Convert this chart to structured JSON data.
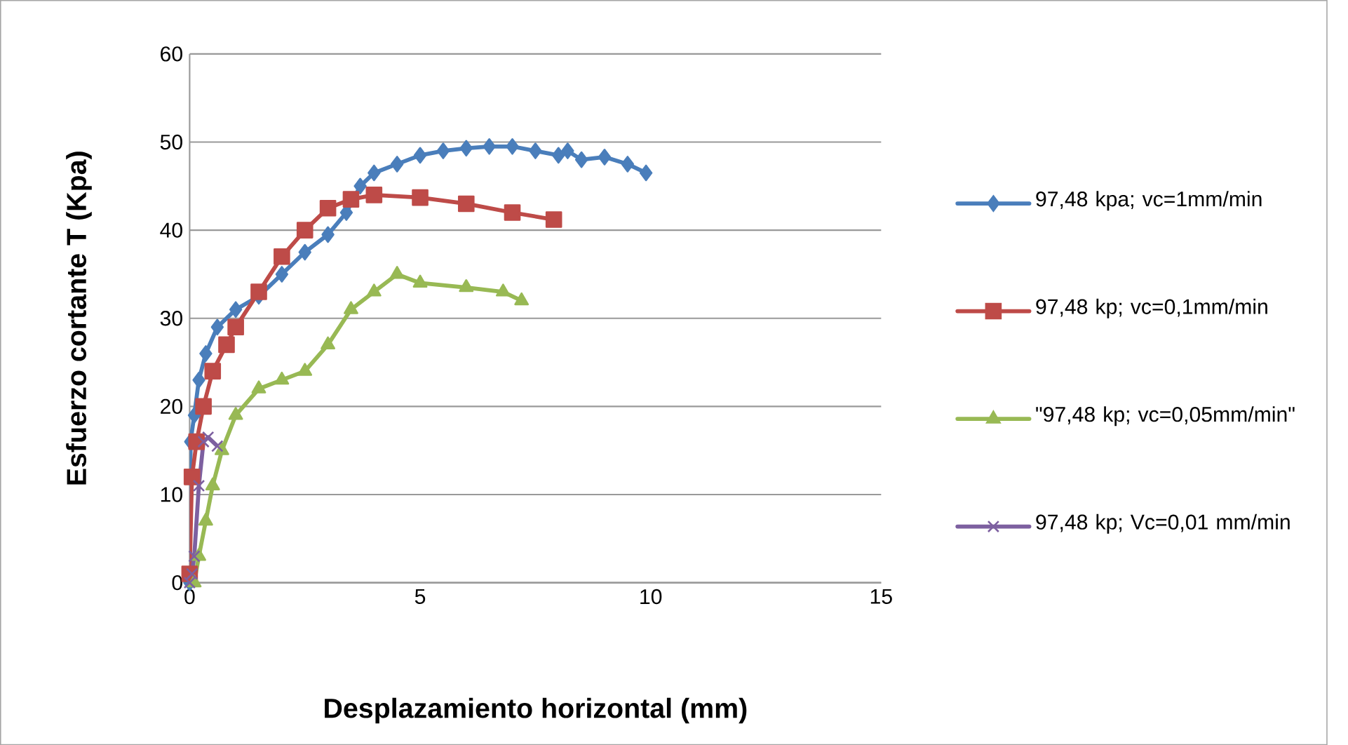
{
  "chart_data": {
    "type": "line",
    "xlabel": "Desplazamiento horizontal (mm)",
    "ylabel": "Esfuerzo cortante Τ (Kpa)",
    "xlim": [
      0,
      15
    ],
    "xticks": [
      0,
      5,
      10,
      15
    ],
    "ylim": [
      0,
      60
    ],
    "yticks": [
      0,
      10,
      20,
      30,
      40,
      50,
      60
    ],
    "grid": "y",
    "legend": "right",
    "line_style": "solid",
    "series": [
      {
        "name": "97,48 kpa; vc=1mm/min",
        "color": "#4a7ebb",
        "marker": "diamond",
        "x": [
          0,
          0.02,
          0.1,
          0.2,
          0.35,
          0.6,
          1,
          1.5,
          2,
          2.5,
          3,
          3.4,
          3.7,
          4,
          4.5,
          5,
          5.5,
          6,
          6.5,
          7,
          7.5,
          8,
          8.2,
          8.5,
          9,
          9.5,
          9.9
        ],
        "values": [
          0,
          16,
          19,
          23,
          26,
          29,
          31,
          32.5,
          35,
          37.5,
          39.5,
          42,
          45,
          46.5,
          47.5,
          48.5,
          49,
          49.3,
          49.5,
          49.5,
          49,
          48.5,
          49,
          48,
          48.3,
          47.5,
          46.5
        ]
      },
      {
        "name": "97,48 kp; vc=0,1mm/min",
        "color": "#be4b48",
        "marker": "square",
        "x": [
          0,
          0.05,
          0.15,
          0.3,
          0.5,
          0.8,
          1,
          1.5,
          2,
          2.5,
          3,
          3.5,
          4,
          5,
          6,
          7,
          7.9
        ],
        "values": [
          1,
          12,
          16,
          20,
          24,
          27,
          29,
          33,
          37,
          40,
          42.5,
          43.5,
          44,
          43.7,
          43,
          42,
          41.2
        ]
      },
      {
        "name": "\"97,48 kp; vc=0,05mm/min\"",
        "color": "#98b954",
        "marker": "triangle",
        "x": [
          0.1,
          0.2,
          0.35,
          0.5,
          0.7,
          1,
          1.5,
          2,
          2.5,
          3,
          3.5,
          4,
          4.5,
          5,
          6,
          6.8,
          7.2
        ],
        "values": [
          0,
          3,
          7,
          11,
          15,
          19,
          22,
          23,
          24,
          27,
          31,
          33,
          35,
          34,
          33.5,
          33,
          32
        ]
      },
      {
        "name": "97,48 kp; Vc=0,01 mm/min",
        "color": "#7d60a0",
        "marker": "cross",
        "x": [
          0,
          0.05,
          0.1,
          0.2,
          0.3,
          0.4,
          0.6
        ],
        "values": [
          0,
          1,
          3,
          11,
          16,
          16.5,
          15.5
        ]
      }
    ]
  }
}
